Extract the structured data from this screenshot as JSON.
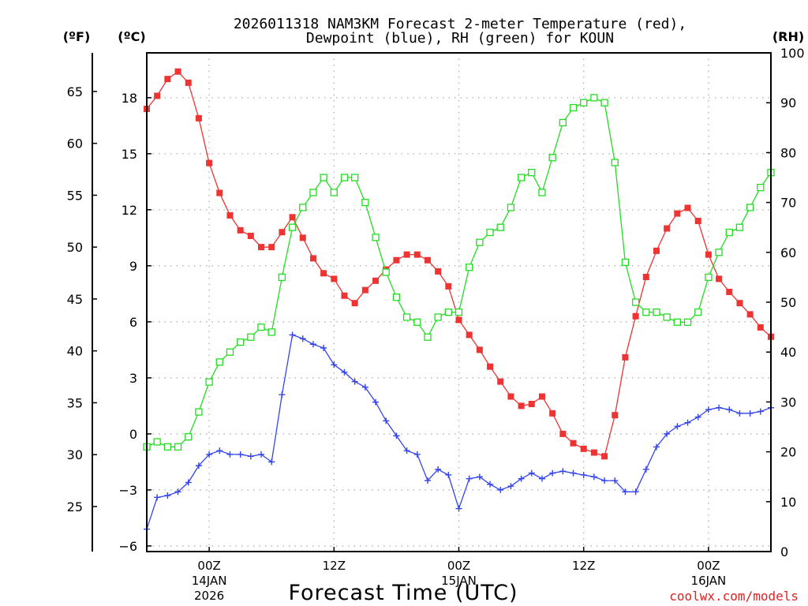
{
  "chart_data": {
    "type": "line",
    "title_line1": "2026011318 NAM3KM Forecast 2-meter Temperature (red),",
    "title_line2": "Dewpoint (blue), RH (green) for KOUN",
    "xlabel": "Forecast Time (UTC)",
    "credit": "coolwx.com/models",
    "unit_left_f": "(ºF)",
    "unit_left_c": "(ºC)",
    "unit_right": "(RH)",
    "x_ticks": [
      {
        "hour": 6,
        "label": "00Z",
        "date": "14JAN",
        "year": "2026"
      },
      {
        "hour": 18,
        "label": "12Z",
        "date": "",
        "year": ""
      },
      {
        "hour": 30,
        "label": "00Z",
        "date": "15JAN",
        "year": ""
      },
      {
        "hour": 42,
        "label": "12Z",
        "date": "",
        "year": ""
      },
      {
        "hour": 54,
        "label": "00Z",
        "date": "16JAN",
        "year": ""
      }
    ],
    "xlim": [
      0,
      60
    ],
    "ylim_c": [
      -6.3,
      20.4
    ],
    "ylim_rh": [
      0,
      100
    ],
    "c_ticks": [
      -6,
      -3,
      0,
      3,
      6,
      9,
      12,
      15,
      18
    ],
    "f_ticks": [
      25,
      30,
      35,
      40,
      45,
      50,
      55,
      60,
      65
    ],
    "rh_ticks": [
      0,
      10,
      20,
      30,
      40,
      50,
      60,
      70,
      80,
      90,
      100
    ],
    "hours": [
      0,
      1,
      2,
      3,
      4,
      5,
      6,
      7,
      8,
      9,
      10,
      11,
      12,
      13,
      14,
      15,
      16,
      17,
      18,
      19,
      20,
      21,
      22,
      23,
      24,
      25,
      26,
      27,
      28,
      29,
      30,
      31,
      32,
      33,
      34,
      35,
      36,
      37,
      38,
      39,
      40,
      41,
      42,
      43,
      44,
      45,
      46,
      47,
      48,
      49,
      50,
      51,
      52,
      53,
      54,
      55,
      56,
      57,
      58,
      59,
      60
    ],
    "series": [
      {
        "name": "2-meter Temperature",
        "unit": "C",
        "color": "#ee3333",
        "marker": "filled-square",
        "values": [
          17.4,
          18.1,
          19.0,
          19.4,
          18.8,
          16.9,
          14.5,
          12.9,
          11.7,
          10.9,
          10.6,
          10.0,
          10.0,
          10.8,
          11.6,
          10.5,
          9.4,
          8.6,
          8.3,
          7.4,
          7.0,
          7.7,
          8.2,
          8.8,
          9.3,
          9.6,
          9.6,
          9.3,
          8.7,
          7.9,
          6.1,
          5.3,
          4.5,
          3.6,
          2.8,
          2.0,
          1.5,
          1.6,
          2.0,
          1.1,
          0.0,
          -0.5,
          -0.8,
          -1.0,
          -1.2,
          1.0,
          4.1,
          6.3,
          8.4,
          9.8,
          11.0,
          11.8,
          12.1,
          11.4,
          9.6,
          8.3,
          7.6,
          7.0,
          6.4,
          5.7,
          5.2
        ]
      },
      {
        "name": "Dewpoint",
        "unit": "C",
        "color": "#3344ee",
        "marker": "plus",
        "values": [
          -5.1,
          -3.4,
          -3.3,
          -3.1,
          -2.6,
          -1.7,
          -1.1,
          -0.9,
          -1.1,
          -1.1,
          -1.2,
          -1.1,
          -1.5,
          2.1,
          5.3,
          5.1,
          4.8,
          4.6,
          3.7,
          3.3,
          2.8,
          2.5,
          1.7,
          0.7,
          -0.1,
          -0.9,
          -1.1,
          -2.5,
          -1.9,
          -2.2,
          -4.0,
          -2.4,
          -2.3,
          -2.7,
          -3.0,
          -2.8,
          -2.4,
          -2.1,
          -2.4,
          -2.1,
          -2.0,
          -2.1,
          -2.2,
          -2.3,
          -2.5,
          -2.5,
          -3.1,
          -3.1,
          -1.9,
          -0.7,
          0.0,
          0.4,
          0.6,
          0.9,
          1.3,
          1.4,
          1.3,
          1.1,
          1.1,
          1.2,
          1.4
        ]
      },
      {
        "name": "RH",
        "unit": "%",
        "color": "#22dd22",
        "marker": "open-square",
        "values": [
          21,
          22,
          21,
          21,
          23,
          28,
          34,
          38,
          40,
          42,
          43,
          45,
          44,
          55,
          65,
          69,
          72,
          75,
          72,
          75,
          75,
          70,
          63,
          56,
          51,
          47,
          46,
          43,
          47,
          48,
          48,
          57,
          62,
          64,
          65,
          69,
          75,
          76,
          72,
          79,
          86,
          89,
          90,
          91,
          90,
          78,
          58,
          50,
          48,
          48,
          47,
          46,
          46,
          48,
          55,
          60,
          64,
          65,
          69,
          73,
          76
        ]
      }
    ]
  }
}
